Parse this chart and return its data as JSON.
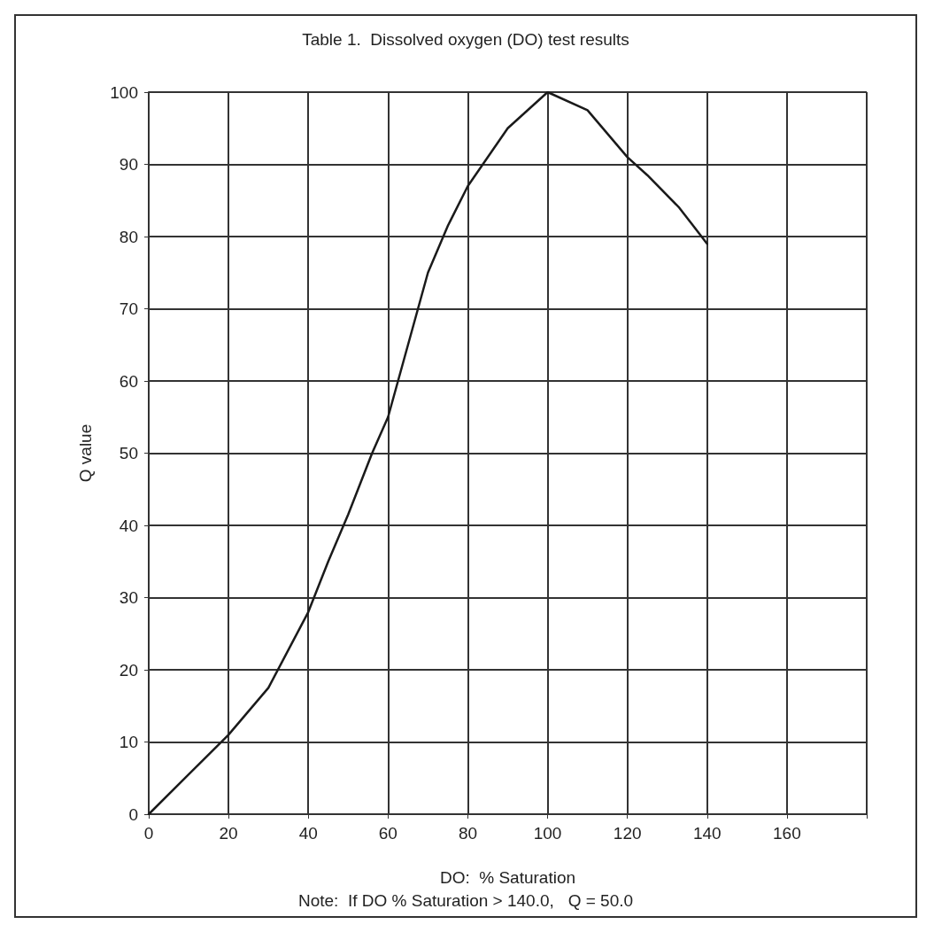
{
  "chart_data": {
    "type": "line",
    "title": "Table 1.  Dissolved oxygen (DO) test results",
    "xlabel": "DO:  % Saturation",
    "ylabel": "Q value",
    "annotations": [
      "Note:  If DO % Saturation > 140.0,   Q = 50.0"
    ],
    "x": [
      0,
      10,
      20,
      30,
      40,
      45,
      50,
      56,
      60,
      65,
      70,
      75,
      80,
      90,
      100,
      110,
      120,
      125,
      133,
      140
    ],
    "series": [
      {
        "color": "#1a1a1a",
        "values": [
          0,
          5.5,
          11,
          17.5,
          28,
          35,
          41.5,
          50,
          55,
          65,
          75,
          81.5,
          87,
          95,
          100,
          97.5,
          91,
          88.5,
          84,
          79
        ]
      }
    ],
    "xlim": [
      0,
      180
    ],
    "xticks": [
      0,
      20,
      40,
      60,
      80,
      100,
      120,
      140,
      160,
      {
        "value": 180,
        "label": null
      }
    ],
    "ylim": [
      0,
      100
    ],
    "yticks": [
      0,
      10,
      20,
      30,
      40,
      50,
      60,
      70,
      80,
      90,
      100
    ],
    "grid": true,
    "marker": "none",
    "line_style": "solid"
  }
}
